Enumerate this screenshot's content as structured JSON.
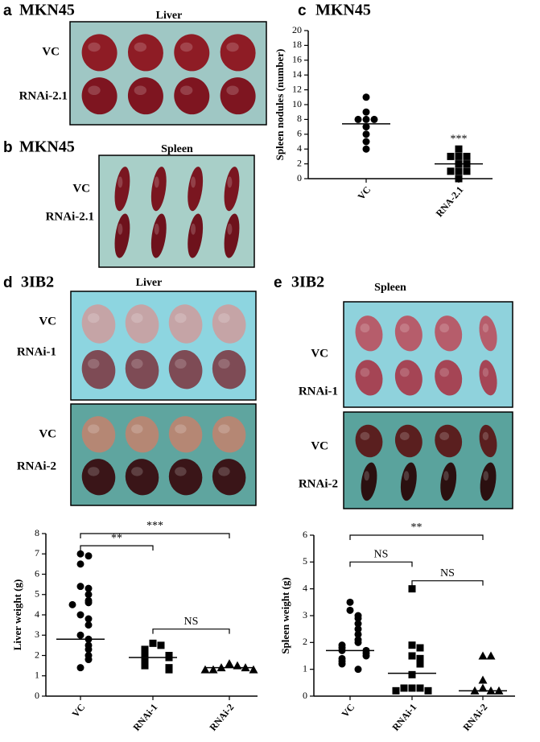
{
  "panels": {
    "a": {
      "letter": "a",
      "title": "MKN45",
      "photo_title": "Liver",
      "rows": [
        "VC",
        "RNAi-2.1"
      ]
    },
    "b": {
      "letter": "b",
      "title": "MKN45",
      "photo_title": "Spleen",
      "rows": [
        "VC",
        "RNAi-2.1"
      ]
    },
    "c": {
      "letter": "c",
      "title": "MKN45"
    },
    "d": {
      "letter": "d",
      "title": "3IB2",
      "photo_title": "Liver",
      "rows": [
        "VC",
        "RNAi-1",
        "VC",
        "RNAi-2"
      ]
    },
    "e": {
      "letter": "e",
      "title": "3IB2",
      "photo_title": "Spleen",
      "rows": [
        "VC",
        "RNAi-1",
        "VC",
        "RNAi-2"
      ]
    }
  },
  "chart_data": [
    {
      "type": "dotplot",
      "y_label": "Spleen nodules (number)",
      "categories": [
        "VC",
        "RNA-2.1"
      ],
      "groups": [
        {
          "marker": "circle",
          "values": [
            11,
            9,
            8,
            8,
            8,
            7,
            6,
            5,
            4
          ],
          "center": 7.4
        },
        {
          "marker": "square",
          "values": [
            4,
            3,
            3,
            3,
            2,
            2,
            1,
            1,
            1,
            0
          ],
          "center": 2
        }
      ],
      "ylim": [
        0,
        20
      ],
      "yticks": [
        0,
        2,
        4,
        6,
        8,
        10,
        12,
        14,
        16,
        18,
        20
      ],
      "annotations": [
        {
          "text": "***",
          "group": 1,
          "y": 5.3
        }
      ],
      "brackets": [],
      "color": "#000000"
    },
    {
      "type": "dotplot",
      "y_label": "Liver weight (g)",
      "categories": [
        "VC",
        "RNAi-1",
        "RNAi-2"
      ],
      "groups": [
        {
          "marker": "circle",
          "values": [
            7.0,
            6.9,
            6.5,
            5.4,
            5.3,
            5.0,
            4.7,
            4.6,
            4.5,
            4.0,
            3.8,
            3.5,
            3.0,
            2.8,
            2.5,
            2.3,
            2.0,
            1.8,
            1.4
          ],
          "center": 2.8
        },
        {
          "marker": "square",
          "values": [
            2.6,
            2.5,
            2.3,
            2.2,
            2.1,
            2.0,
            1.9,
            1.7,
            1.6,
            1.5,
            1.4,
            1.3
          ],
          "center": 1.9
        },
        {
          "marker": "triangle",
          "values": [
            1.6,
            1.5,
            1.4,
            1.4,
            1.3,
            1.3,
            1.3
          ],
          "center": 1.4
        }
      ],
      "ylim": [
        0,
        8
      ],
      "yticks": [
        0,
        1,
        2,
        3,
        4,
        5,
        6,
        7,
        8
      ],
      "annotations": [],
      "brackets": [
        {
          "label": "**",
          "from": 0,
          "to": 1,
          "y": 7.4
        },
        {
          "label": "***",
          "from": 0,
          "to": 2,
          "y": 8.0
        },
        {
          "label": "NS",
          "from": 1,
          "to": 2,
          "y": 3.3
        }
      ],
      "color": "#000000"
    },
    {
      "type": "dotplot",
      "y_label": "Spleen weight (g)",
      "categories": [
        "VC",
        "RNAi-1",
        "RNAi-2"
      ],
      "groups": [
        {
          "marker": "circle",
          "values": [
            3.5,
            3.2,
            3.0,
            2.9,
            2.7,
            2.5,
            2.3,
            2.1,
            2.0,
            1.9,
            1.8,
            1.7,
            1.7,
            1.6,
            1.5,
            1.4,
            1.3,
            1.2,
            1.0
          ],
          "center": 1.7
        },
        {
          "marker": "square",
          "values": [
            4.0,
            1.9,
            1.8,
            1.5,
            1.4,
            1.2,
            0.8,
            0.3,
            0.3,
            0.3,
            0.2,
            0.2
          ],
          "center": 0.85
        },
        {
          "marker": "triangle",
          "values": [
            1.5,
            1.5,
            0.6,
            0.3,
            0.2,
            0.2,
            0.2
          ],
          "center": 0.2
        }
      ],
      "ylim": [
        0,
        6
      ],
      "yticks": [
        0,
        1,
        2,
        3,
        4,
        5,
        6
      ],
      "annotations": [],
      "brackets": [
        {
          "label": "**",
          "from": 0,
          "to": 2,
          "y": 6.0
        },
        {
          "label": "NS",
          "from": 0,
          "to": 1,
          "y": 5.0
        },
        {
          "label": "NS",
          "from": 1,
          "to": 2,
          "y": 4.3
        }
      ],
      "color": "#000000"
    }
  ]
}
